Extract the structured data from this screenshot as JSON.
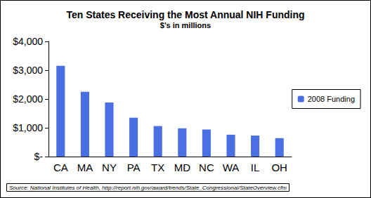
{
  "chart_data": {
    "type": "bar",
    "title": "Ten States Receiving the Most Annual NIH Funding",
    "subtitle": "$'s in millions",
    "categories": [
      "CA",
      "MA",
      "NY",
      "PA",
      "TX",
      "MD",
      "NC",
      "WA",
      "IL",
      "OH"
    ],
    "series": [
      {
        "name": "2008 Funding",
        "color": "#4a6fe3",
        "values": [
          3150,
          2250,
          1880,
          1350,
          1060,
          980,
          940,
          760,
          730,
          640
        ]
      }
    ],
    "ylim": [
      0,
      4000
    ],
    "yticks": [
      {
        "value": 0,
        "label": "$-"
      },
      {
        "value": 1000,
        "label": "$1,000"
      },
      {
        "value": 2000,
        "label": "$2,000"
      },
      {
        "value": 3000,
        "label": "$3,000"
      },
      {
        "value": 4000,
        "label": "$4,000"
      }
    ],
    "grid": false,
    "legend": "right",
    "source": "Source: National Institutes of Health, http://report.nih.gov/award/trends/State_Congressional/StateOverview.cfm"
  }
}
